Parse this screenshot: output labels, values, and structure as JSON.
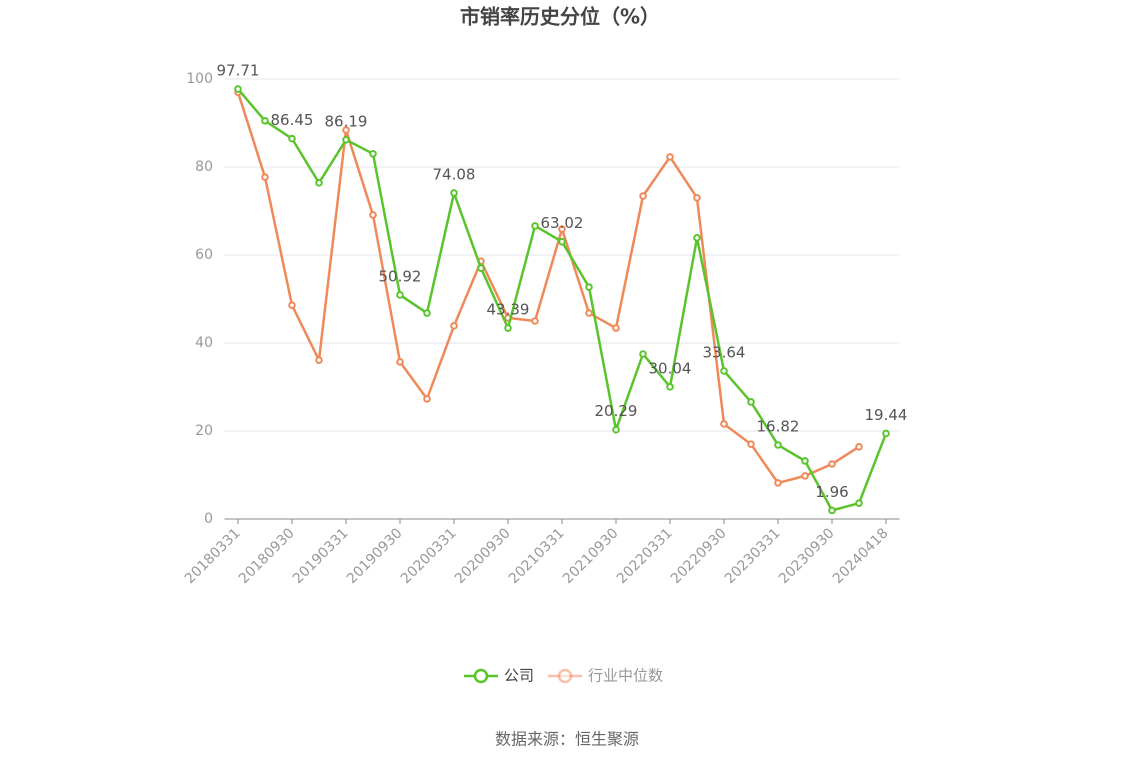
{
  "chart_data": {
    "type": "line",
    "title": "市销率历史分位（%）",
    "categories": [
      "20180331",
      null,
      "20180930",
      null,
      "20190331",
      null,
      "20190930",
      null,
      "20200331",
      null,
      "20200930",
      null,
      "20210331",
      null,
      "20210930",
      null,
      "20220331",
      null,
      "20220930",
      null,
      "20230331",
      null,
      "20230930",
      null,
      "20240418"
    ],
    "series": [
      {
        "name": "公司",
        "color": "#5ac42c",
        "values": [
          97.71,
          90.5,
          86.45,
          76.4,
          86.19,
          83.0,
          50.92,
          46.8,
          74.08,
          57.0,
          43.39,
          66.6,
          63.02,
          52.7,
          20.29,
          37.5,
          30.04,
          63.9,
          33.64,
          26.6,
          16.82,
          13.2,
          1.96,
          3.6,
          19.44
        ],
        "value_labels": [
          "97.71",
          null,
          "86.45",
          null,
          "86.19",
          null,
          "50.92",
          null,
          "74.08",
          null,
          "43.39",
          null,
          "63.02",
          null,
          "20.29",
          null,
          "30.04",
          null,
          "33.64",
          null,
          "16.82",
          null,
          "1.96",
          null,
          "19.44"
        ]
      },
      {
        "name": "行业中位数",
        "color": "#f0895a",
        "values": [
          97.0,
          77.7,
          48.6,
          36.1,
          88.4,
          69.1,
          35.7,
          27.3,
          43.9,
          58.6,
          45.7,
          45.0,
          65.9,
          46.8,
          43.4,
          73.4,
          82.3,
          73.0,
          21.6,
          17.0,
          8.2,
          9.8,
          12.5,
          16.4,
          null
        ]
      }
    ],
    "ylim": [
      0,
      100
    ],
    "yticks": [
      0,
      20,
      40,
      60,
      80,
      100
    ],
    "grid": true,
    "source": "数据来源：恒生聚源"
  }
}
